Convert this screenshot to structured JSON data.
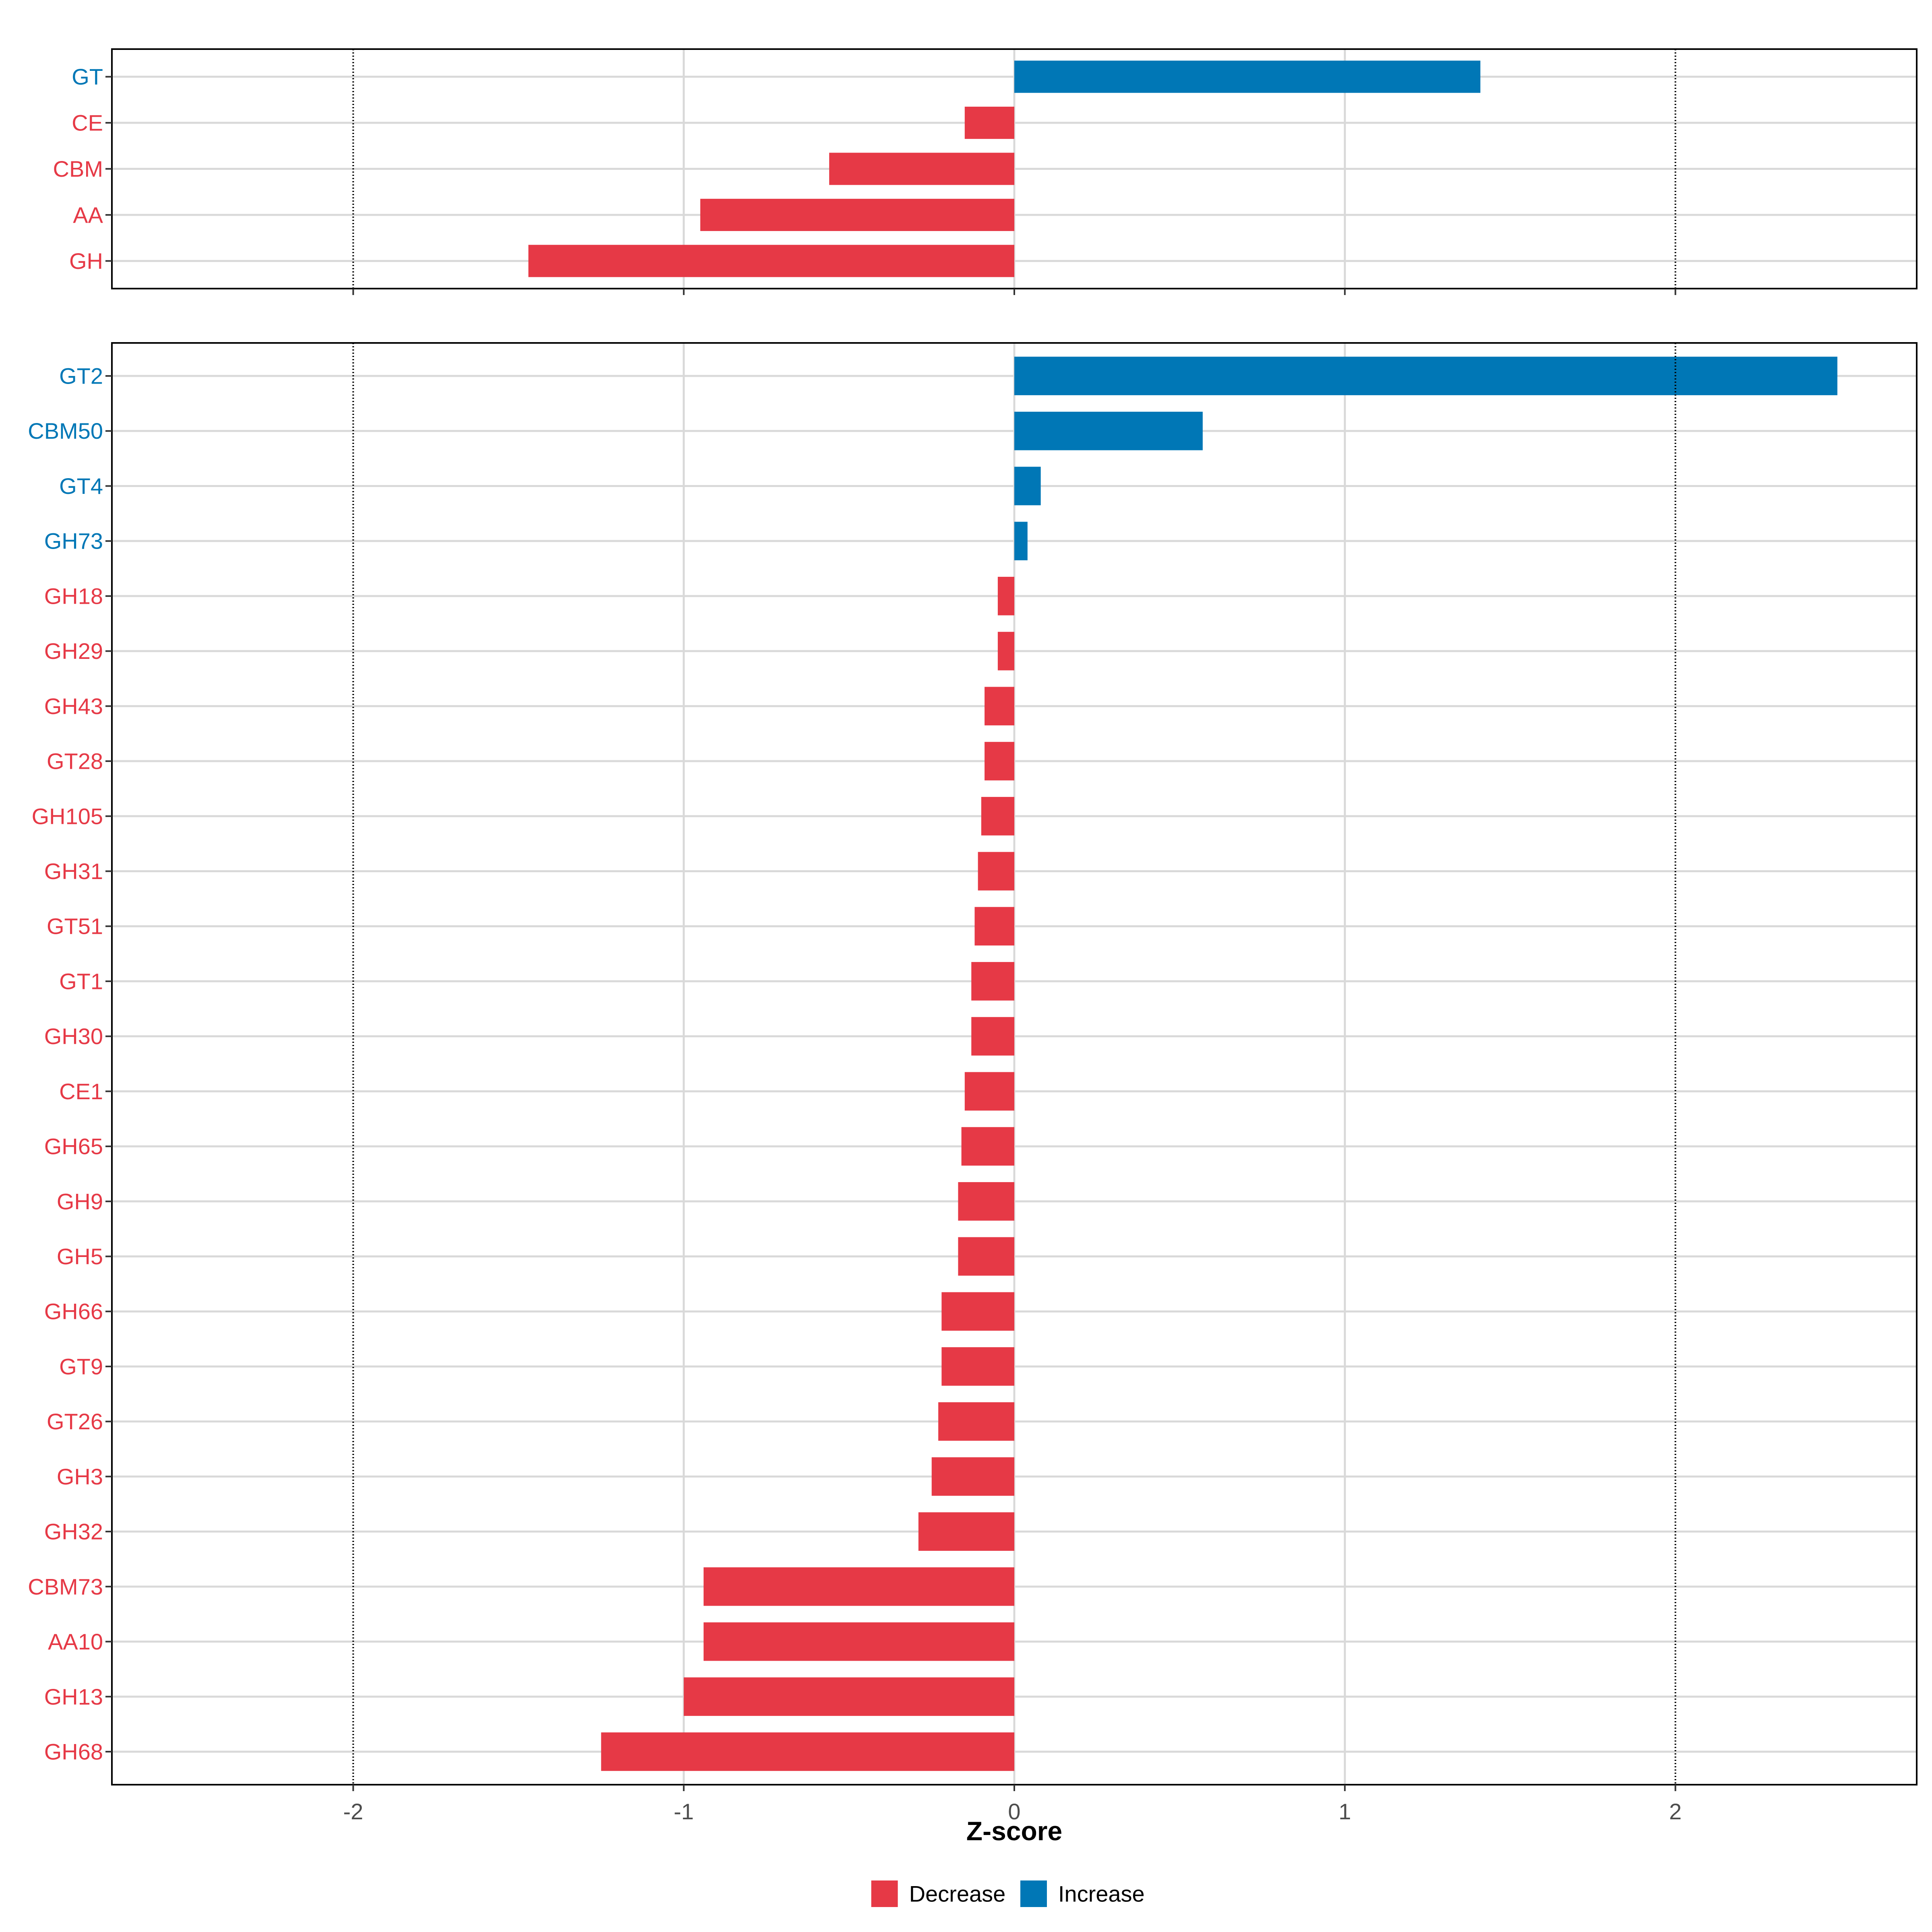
{
  "chart_data": [
    {
      "type": "bar",
      "orientation": "horizontal",
      "categories": [
        "GT",
        "CE",
        "CBM",
        "AA",
        "GH"
      ],
      "values": [
        1.41,
        -0.15,
        -0.56,
        -0.95,
        -1.47
      ],
      "xlim": [
        -2.73,
        2.73
      ],
      "x_ticks": [
        -2,
        -1,
        0,
        1,
        2
      ],
      "reference_lines": [
        -2,
        2
      ],
      "grid": true,
      "xlabel": "",
      "ylabel": ""
    },
    {
      "type": "bar",
      "orientation": "horizontal",
      "categories": [
        "GT2",
        "CBM50",
        "GT4",
        "GH73",
        "GH18",
        "GH29",
        "GH43",
        "GT28",
        "GH105",
        "GH31",
        "GT51",
        "GT1",
        "GH30",
        "CE1",
        "GH65",
        "GH9",
        "GH5",
        "GH66",
        "GT9",
        "GT26",
        "GH3",
        "GH32",
        "CBM73",
        "AA10",
        "GH13",
        "GH68"
      ],
      "values": [
        2.49,
        0.57,
        0.08,
        0.04,
        -0.05,
        -0.05,
        -0.09,
        -0.09,
        -0.1,
        -0.11,
        -0.12,
        -0.13,
        -0.13,
        -0.15,
        -0.16,
        -0.17,
        -0.17,
        -0.22,
        -0.22,
        -0.23,
        -0.25,
        -0.29,
        -0.94,
        -0.94,
        -1.0,
        -1.25
      ],
      "xlim": [
        -2.73,
        2.73
      ],
      "x_ticks": [
        -2,
        -1,
        0,
        1,
        2
      ],
      "reference_lines": [
        -2,
        2
      ],
      "grid": true,
      "xlabel": "Z-score",
      "ylabel": ""
    }
  ],
  "legend": {
    "position": "bottom",
    "items": [
      {
        "label": "Decrease",
        "color": "#E63946"
      },
      {
        "label": "Increase",
        "color": "#0077B6"
      }
    ]
  },
  "colors": {
    "decrease": "#E63946",
    "increase": "#0077B6"
  }
}
